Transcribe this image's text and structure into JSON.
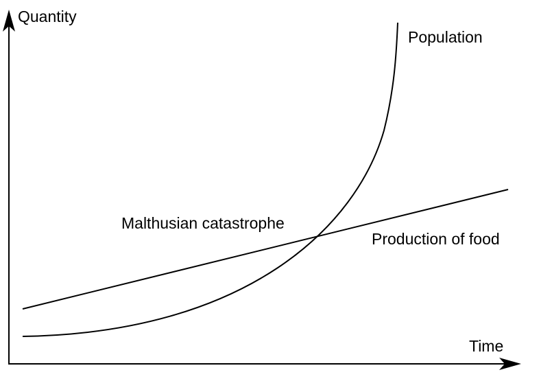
{
  "axes": {
    "y_label": "Quantity",
    "x_label": "Time"
  },
  "curves": {
    "population_label": "Population",
    "food_label": "Production of food"
  },
  "annotation": {
    "intersection_label": "Malthusian catastrophe"
  },
  "colors": {
    "stroke": "#000000",
    "background": "#ffffff"
  }
}
